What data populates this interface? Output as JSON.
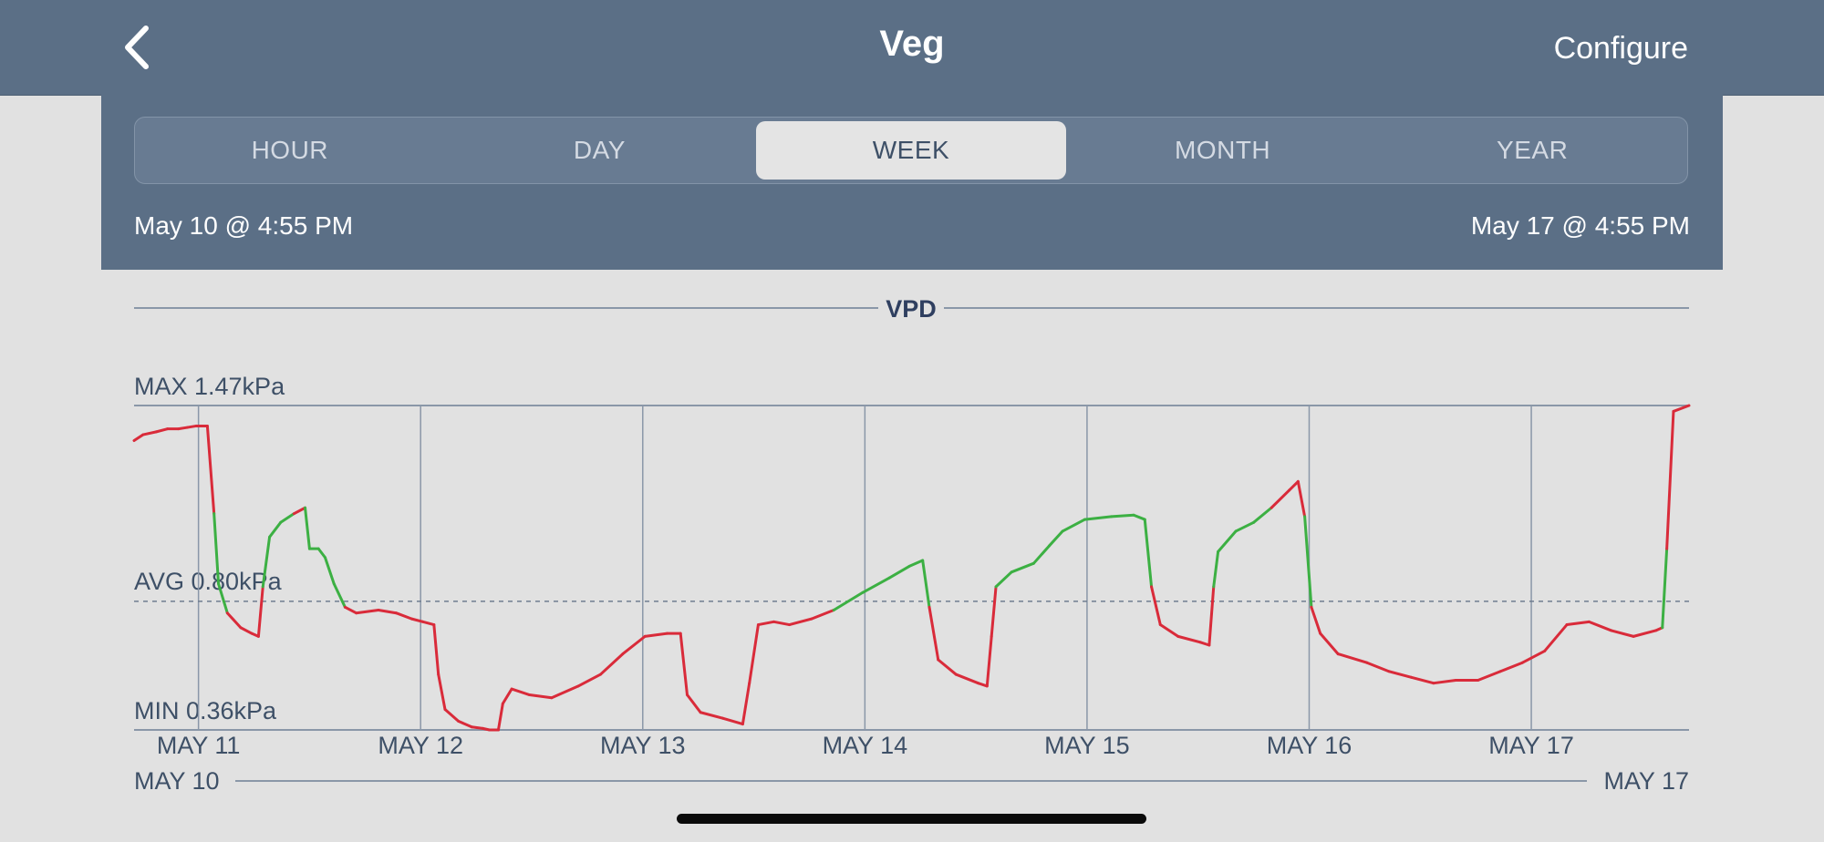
{
  "header": {
    "title": "Veg",
    "configure_label": "Configure",
    "back_icon": "chevron-left-icon"
  },
  "segments": [
    {
      "label": "HOUR",
      "active": false
    },
    {
      "label": "DAY",
      "active": false
    },
    {
      "label": "WEEK",
      "active": true
    },
    {
      "label": "MONTH",
      "active": false
    },
    {
      "label": "YEAR",
      "active": false
    }
  ],
  "range": {
    "start": "May 10 @ 4:55 PM",
    "end": "May 17 @ 4:55 PM"
  },
  "colors": {
    "header_bg": "#5b6f86",
    "in_range": "#3cb043",
    "out_of_range": "#d92b3a",
    "grid": "#8a97a8",
    "text": "#3e5067"
  },
  "chart_data": {
    "type": "line",
    "title": "VPD",
    "unit": "kPa",
    "max_label": "MAX 1.47kPa",
    "avg_label": "AVG 0.80kPa",
    "min_label": "MIN 0.36kPa",
    "ylim": [
      0.36,
      1.47
    ],
    "avg": 0.8,
    "target_band": [
      0.8,
      1.1
    ],
    "x_start_label": "MAY 10",
    "x_end_label": "MAY 17",
    "xlim": [
      0,
      7
    ],
    "x_ticks": [
      {
        "x": 0.29,
        "label": "MAY 11"
      },
      {
        "x": 1.29,
        "label": "MAY 12"
      },
      {
        "x": 2.29,
        "label": "MAY 13"
      },
      {
        "x": 3.29,
        "label": "MAY 14"
      },
      {
        "x": 4.29,
        "label": "MAY 15"
      },
      {
        "x": 5.29,
        "label": "MAY 16"
      },
      {
        "x": 6.29,
        "label": "MAY 17"
      }
    ],
    "series": [
      {
        "points": [
          [
            0.0,
            1.35
          ],
          [
            0.04,
            1.37
          ],
          [
            0.1,
            1.38
          ],
          [
            0.15,
            1.39
          ],
          [
            0.2,
            1.39
          ],
          [
            0.24,
            1.395
          ],
          [
            0.28,
            1.4
          ],
          [
            0.33,
            1.4
          ],
          [
            0.36,
            1.1
          ],
          [
            0.38,
            0.86
          ],
          [
            0.42,
            0.76
          ],
          [
            0.48,
            0.71
          ],
          [
            0.53,
            0.69
          ],
          [
            0.56,
            0.68
          ],
          [
            0.58,
            0.85
          ],
          [
            0.61,
            1.02
          ],
          [
            0.66,
            1.07
          ],
          [
            0.72,
            1.1
          ],
          [
            0.77,
            1.12
          ],
          [
            0.79,
            0.98
          ],
          [
            0.83,
            0.98
          ],
          [
            0.86,
            0.95
          ],
          [
            0.9,
            0.86
          ],
          [
            0.95,
            0.78
          ],
          [
            1.0,
            0.76
          ],
          [
            1.1,
            0.77
          ],
          [
            1.18,
            0.76
          ],
          [
            1.25,
            0.74
          ],
          [
            1.3,
            0.73
          ],
          [
            1.35,
            0.72
          ],
          [
            1.37,
            0.55
          ],
          [
            1.4,
            0.43
          ],
          [
            1.46,
            0.39
          ],
          [
            1.52,
            0.37
          ],
          [
            1.57,
            0.365
          ],
          [
            1.6,
            0.36
          ],
          [
            1.64,
            0.36
          ],
          [
            1.66,
            0.45
          ],
          [
            1.7,
            0.5
          ],
          [
            1.78,
            0.48
          ],
          [
            1.88,
            0.47
          ],
          [
            2.0,
            0.51
          ],
          [
            2.1,
            0.55
          ],
          [
            2.2,
            0.62
          ],
          [
            2.3,
            0.68
          ],
          [
            2.4,
            0.69
          ],
          [
            2.46,
            0.69
          ],
          [
            2.49,
            0.48
          ],
          [
            2.55,
            0.42
          ],
          [
            2.65,
            0.4
          ],
          [
            2.74,
            0.38
          ],
          [
            2.77,
            0.52
          ],
          [
            2.81,
            0.72
          ],
          [
            2.88,
            0.73
          ],
          [
            2.95,
            0.72
          ],
          [
            3.05,
            0.74
          ],
          [
            3.15,
            0.77
          ],
          [
            3.28,
            0.83
          ],
          [
            3.4,
            0.88
          ],
          [
            3.49,
            0.92
          ],
          [
            3.55,
            0.94
          ],
          [
            3.58,
            0.78
          ],
          [
            3.62,
            0.6
          ],
          [
            3.7,
            0.55
          ],
          [
            3.8,
            0.52
          ],
          [
            3.84,
            0.51
          ],
          [
            3.86,
            0.68
          ],
          [
            3.88,
            0.85
          ],
          [
            3.95,
            0.9
          ],
          [
            4.05,
            0.93
          ],
          [
            4.12,
            0.99
          ],
          [
            4.18,
            1.04
          ],
          [
            4.28,
            1.08
          ],
          [
            4.4,
            1.09
          ],
          [
            4.5,
            1.095
          ],
          [
            4.55,
            1.08
          ],
          [
            4.58,
            0.85
          ],
          [
            4.62,
            0.72
          ],
          [
            4.7,
            0.68
          ],
          [
            4.8,
            0.66
          ],
          [
            4.84,
            0.65
          ],
          [
            4.86,
            0.85
          ],
          [
            4.88,
            0.97
          ],
          [
            4.96,
            1.04
          ],
          [
            5.04,
            1.07
          ],
          [
            5.12,
            1.12
          ],
          [
            5.2,
            1.18
          ],
          [
            5.24,
            1.21
          ],
          [
            5.27,
            1.09
          ],
          [
            5.3,
            0.78
          ],
          [
            5.34,
            0.69
          ],
          [
            5.42,
            0.62
          ],
          [
            5.55,
            0.59
          ],
          [
            5.65,
            0.56
          ],
          [
            5.75,
            0.54
          ],
          [
            5.85,
            0.52
          ],
          [
            5.95,
            0.53
          ],
          [
            6.05,
            0.53
          ],
          [
            6.15,
            0.56
          ],
          [
            6.25,
            0.59
          ],
          [
            6.35,
            0.63
          ],
          [
            6.45,
            0.72
          ],
          [
            6.55,
            0.73
          ],
          [
            6.65,
            0.7
          ],
          [
            6.75,
            0.68
          ],
          [
            6.85,
            0.7
          ],
          [
            6.88,
            0.71
          ],
          [
            6.9,
            0.98
          ],
          [
            6.93,
            1.45
          ],
          [
            7.0,
            1.47
          ]
        ]
      }
    ]
  }
}
